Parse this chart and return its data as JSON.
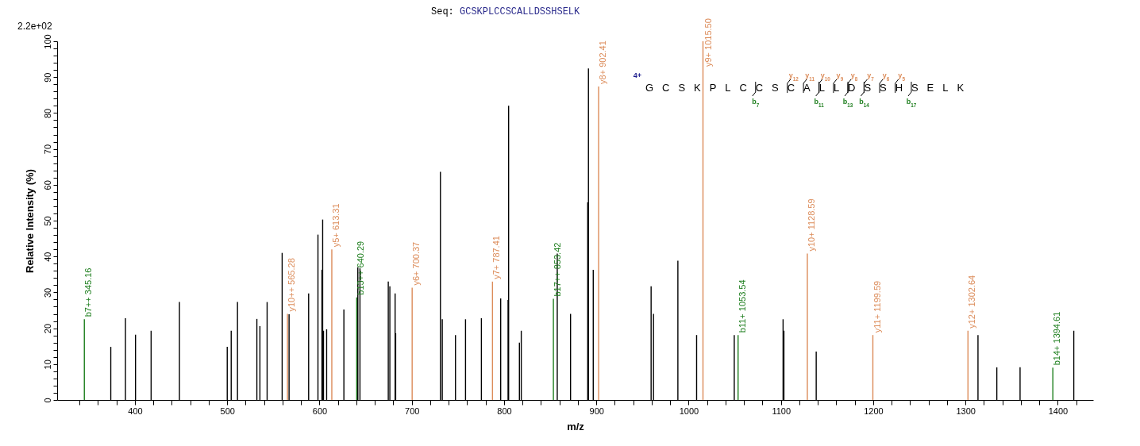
{
  "chart_data": {
    "type": "bar",
    "title": "Seq: GCSKPLCCSCALLDSSHSELK",
    "xlabel": "m/z",
    "ylabel": "Relative   Intensity (%)",
    "series": [
      {
        "color": "#000000",
        "x": [
          373.8,
          389.7,
          400.6,
          417.5,
          448.2,
          500,
          504.3,
          511.1,
          532.1,
          535.4,
          543.2,
          559.5,
          567,
          588.2,
          598.3,
          602.6,
          603.4,
          604.3,
          607.7,
          626.4,
          641.5,
          643.8,
          674.5,
          676.2,
          681.9,
          682.5,
          731,
          733,
          747.3,
          758.2,
          775.4,
          796.3,
          804.3,
          804.9,
          816.6,
          818.6,
          857.6,
          872,
          890.6,
          891.4,
          896.6,
          959.3,
          961.9,
          988.3,
          1008.6,
          1049.4,
          1102.3,
          1103.2,
          1138.2,
          1313.5,
          1333.9,
          1359.1,
          1417.3
        ],
        "values": [
          14.8,
          22.8,
          18.2,
          19.3,
          27.3,
          14.8,
          19.3,
          27.3,
          22.6,
          20.6,
          27.3,
          41,
          23.9,
          29.7,
          46.1,
          36.3,
          50.3,
          19.3,
          19.7,
          25.2,
          37,
          36.7,
          33,
          31.7,
          29.7,
          18.6,
          63.6,
          22.5,
          18.1,
          22.5,
          22.8,
          28.3,
          27.9,
          82,
          16,
          19.3,
          40.8,
          24,
          55.1,
          92.4,
          36.3,
          31.7,
          24,
          38.8,
          18.1,
          18.1,
          22.5,
          19.3,
          13.5,
          18.1,
          9.1,
          9.1,
          19.3
        ]
      },
      {
        "color": "#dc8c5a",
        "x": [
          565.28,
          613.31,
          700.37,
          787.41,
          902.41,
          1015.5,
          1128.59,
          1199.59,
          1302.64
        ],
        "values": [
          24,
          42,
          31.3,
          33,
          87.4,
          100,
          40.8,
          18.1,
          19.3
        ]
      },
      {
        "color": "#1f7f1f",
        "x": [
          345.16,
          640.29,
          853.42,
          1053.54,
          1394.61
        ],
        "values": [
          22.5,
          28.6,
          28.2,
          18.1,
          9
        ]
      }
    ],
    "xlim": [
      320,
      1434
    ],
    "xticks": [
      {
        "value": 340,
        "label": null
      },
      {
        "value": 360,
        "label": null
      },
      {
        "value": 380,
        "label": null
      },
      400,
      {
        "value": 420,
        "label": null
      },
      {
        "value": 440,
        "label": null
      },
      {
        "value": 460,
        "label": null
      },
      {
        "value": 480,
        "label": null
      },
      500,
      {
        "value": 520,
        "label": null
      },
      {
        "value": 540,
        "label": null
      },
      {
        "value": 560,
        "label": null
      },
      {
        "value": 580,
        "label": null
      },
      600,
      {
        "value": 620,
        "label": null
      },
      {
        "value": 640,
        "label": null
      },
      {
        "value": 660,
        "label": null
      },
      {
        "value": 680,
        "label": null
      },
      700,
      {
        "value": 720,
        "label": null
      },
      {
        "value": 740,
        "label": null
      },
      {
        "value": 760,
        "label": null
      },
      {
        "value": 780,
        "label": null
      },
      800,
      {
        "value": 820,
        "label": null
      },
      {
        "value": 840,
        "label": null
      },
      {
        "value": 860,
        "label": null
      },
      {
        "value": 880,
        "label": null
      },
      900,
      {
        "value": 920,
        "label": null
      },
      {
        "value": 940,
        "label": null
      },
      {
        "value": 960,
        "label": null
      },
      {
        "value": 980,
        "label": null
      },
      1000,
      {
        "value": 1020,
        "label": null
      },
      {
        "value": 1040,
        "label": null
      },
      {
        "value": 1060,
        "label": null
      },
      {
        "value": 1080,
        "label": null
      },
      1100,
      {
        "value": 1120,
        "label": null
      },
      {
        "value": 1140,
        "label": null
      },
      {
        "value": 1160,
        "label": null
      },
      {
        "value": 1180,
        "label": null
      },
      1200,
      {
        "value": 1220,
        "label": null
      },
      {
        "value": 1240,
        "label": null
      },
      {
        "value": 1260,
        "label": null
      },
      {
        "value": 1280,
        "label": null
      },
      1300,
      {
        "value": 1320,
        "label": null
      },
      {
        "value": 1340,
        "label": null
      },
      {
        "value": 1360,
        "label": null
      },
      {
        "value": 1380,
        "label": null
      },
      1400,
      {
        "value": 1420,
        "label": null
      }
    ],
    "ylim": [
      0,
      100
    ],
    "yticks": [
      0,
      {
        "value": 2,
        "label": null
      },
      {
        "value": 4,
        "label": null
      },
      {
        "value": 6,
        "label": null
      },
      {
        "value": 8,
        "label": null
      },
      10,
      {
        "value": 12,
        "label": null
      },
      {
        "value": 14,
        "label": null
      },
      {
        "value": 16,
        "label": null
      },
      {
        "value": 18,
        "label": null
      },
      20,
      {
        "value": 22,
        "label": null
      },
      {
        "value": 24,
        "label": null
      },
      {
        "value": 26,
        "label": null
      },
      {
        "value": 28,
        "label": null
      },
      30,
      {
        "value": 32,
        "label": null
      },
      {
        "value": 34,
        "label": null
      },
      {
        "value": 36,
        "label": null
      },
      {
        "value": 38,
        "label": null
      },
      40,
      {
        "value": 42,
        "label": null
      },
      {
        "value": 44,
        "label": null
      },
      {
        "value": 46,
        "label": null
      },
      {
        "value": 48,
        "label": null
      },
      50,
      {
        "value": 52,
        "label": null
      },
      {
        "value": 54,
        "label": null
      },
      {
        "value": 56,
        "label": null
      },
      {
        "value": 58,
        "label": null
      },
      60,
      {
        "value": 62,
        "label": null
      },
      {
        "value": 64,
        "label": null
      },
      {
        "value": 66,
        "label": null
      },
      {
        "value": 68,
        "label": null
      },
      70,
      {
        "value": 72,
        "label": null
      },
      {
        "value": 74,
        "label": null
      },
      {
        "value": 76,
        "label": null
      },
      {
        "value": 78,
        "label": null
      },
      80,
      {
        "value": 82,
        "label": null
      },
      {
        "value": 84,
        "label": null
      },
      {
        "value": 86,
        "label": null
      },
      {
        "value": 88,
        "label": null
      },
      90,
      {
        "value": 92,
        "label": null
      },
      {
        "value": 94,
        "label": null
      },
      {
        "value": 96,
        "label": null
      },
      {
        "value": 98,
        "label": null
      },
      100
    ],
    "grid": false,
    "legend": false,
    "annotations": [
      {
        "text": "b7++ 345.16",
        "x": 345.16,
        "y": 22.5
      },
      {
        "text": "y10++ 565.28",
        "x": 565.28,
        "y": 24
      },
      {
        "text": "y5+ 613.31",
        "x": 613.31,
        "y": 42
      },
      {
        "text": "b13++ 640.29",
        "x": 640.29,
        "y": 28.6
      },
      {
        "text": "y6+ 700.37",
        "x": 700.37,
        "y": 31.3
      },
      {
        "text": "y7+ 787.41",
        "x": 787.41,
        "y": 33
      },
      {
        "text": "b17++ 853.42",
        "x": 853.42,
        "y": 28.2
      },
      {
        "text": "y8+ 902.41",
        "x": 902.41,
        "y": 87.4
      },
      {
        "text": "y9+ 1015.50",
        "x": 1015.5,
        "y": 100
      },
      {
        "text": "b11+ 1053.54",
        "x": 1053.54,
        "y": 18.1
      },
      {
        "text": "y10+ 1128.59",
        "x": 1128.59,
        "y": 40.8
      },
      {
        "text": "y11+ 1199.59",
        "x": 1199.59,
        "y": 18.1
      },
      {
        "text": "y12+ 1302.64",
        "x": 1302.64,
        "y": 19.3
      },
      {
        "text": "b14+ 1394.61",
        "x": 1394.61,
        "y": 9
      },
      "2.2e+02",
      "4+",
      "GCSKPLCCSCALLDSSHSELK",
      "y$_{12}$",
      "y$_{11}$",
      "y$_{10}$",
      "y$_{9}$",
      "y$_{8}$",
      "y$_{7}$",
      "y$_{6}$",
      "y$_{5}$",
      "b$_{7}$",
      "b$_{11}$",
      "b$_{13}$",
      "b$_{14}$",
      "b$_{17}$"
    ]
  }
}
